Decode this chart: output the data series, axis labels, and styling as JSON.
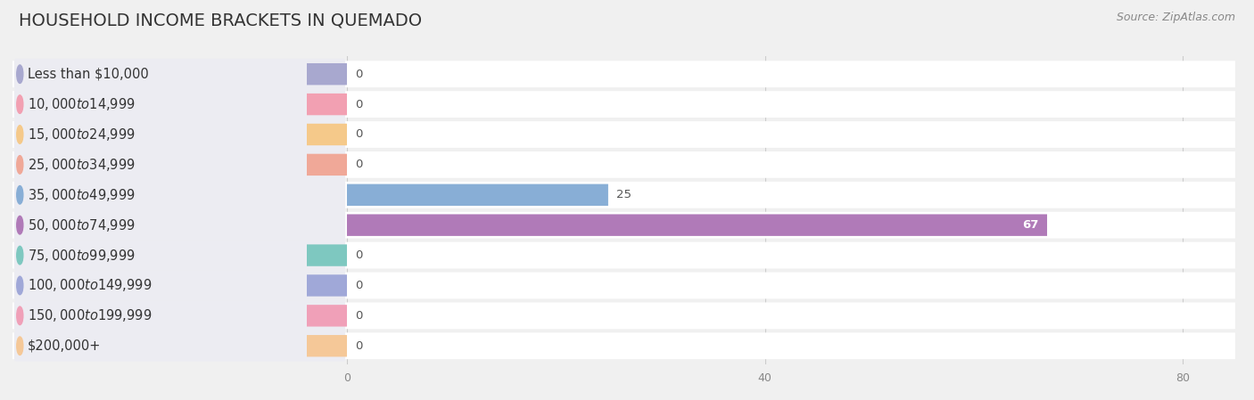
{
  "title": "HOUSEHOLD INCOME BRACKETS IN QUEMADO",
  "source": "Source: ZipAtlas.com",
  "categories": [
    "Less than $10,000",
    "$10,000 to $14,999",
    "$15,000 to $24,999",
    "$25,000 to $34,999",
    "$35,000 to $49,999",
    "$50,000 to $74,999",
    "$75,000 to $99,999",
    "$100,000 to $149,999",
    "$150,000 to $199,999",
    "$200,000+"
  ],
  "values": [
    0,
    0,
    0,
    0,
    25,
    67,
    0,
    0,
    0,
    0
  ],
  "bar_colors": [
    "#a8a8cf",
    "#f2a0b2",
    "#f5c98a",
    "#f0a898",
    "#88aed6",
    "#b07ab8",
    "#7ec8c0",
    "#a0a8d8",
    "#f0a0b8",
    "#f5c898"
  ],
  "xlim": [
    0,
    85
  ],
  "xticks": [
    0,
    40,
    80
  ],
  "background_color": "#f0f0f0",
  "row_bg_color": "#ffffff",
  "pill_bg_color": "#f5f5f8",
  "title_fontsize": 14,
  "source_fontsize": 9,
  "label_fontsize": 10.5,
  "value_fontsize": 9.5
}
